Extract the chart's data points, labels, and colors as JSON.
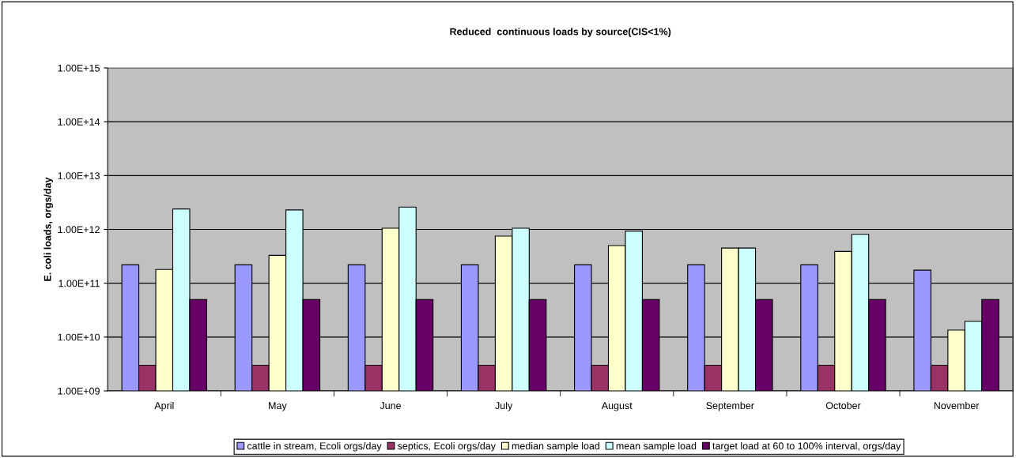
{
  "chart_data": {
    "type": "bar",
    "title": "Reduced  continuous loads by source(CIS<1%)",
    "ylabel": "E. coli loads, orgs/day",
    "categories": [
      "April",
      "May",
      "June",
      "July",
      "August",
      "September",
      "October",
      "November"
    ],
    "series": [
      {
        "name": "cattle in stream, Ecoli orgs/day",
        "color": "#9999ff",
        "values": [
          220000000000.0,
          220000000000.0,
          220000000000.0,
          220000000000.0,
          220000000000.0,
          220000000000.0,
          220000000000.0,
          175000000000.0
        ]
      },
      {
        "name": "septics, Ecoli orgs/day",
        "color": "#993366",
        "values": [
          3000000000.0,
          3000000000.0,
          3000000000.0,
          3000000000.0,
          3000000000.0,
          3000000000.0,
          3000000000.0,
          3000000000.0
        ]
      },
      {
        "name": "median sample load",
        "color": "#ffffcc",
        "values": [
          180000000000.0,
          330000000000.0,
          1050000000000.0,
          750000000000.0,
          500000000000.0,
          450000000000.0,
          390000000000.0,
          13500000000.0
        ]
      },
      {
        "name": "mean sample load",
        "color": "#ccffff",
        "values": [
          2400000000000.0,
          2300000000000.0,
          2600000000000.0,
          1050000000000.0,
          930000000000.0,
          450000000000.0,
          810000000000.0,
          19500000000.0
        ]
      },
      {
        "name": "target load at 60 to 100% interval, orgs/day",
        "color": "#660066",
        "values": [
          50000000000.0,
          50000000000.0,
          50000000000.0,
          50000000000.0,
          50000000000.0,
          50000000000.0,
          50000000000.0,
          50000000000.0
        ]
      }
    ],
    "log": true,
    "ylim": [
      1000000000.0,
      1000000000000000.0
    ],
    "yticks": [
      {
        "value": 1000000000.0,
        "label": "1.00E+09"
      },
      {
        "value": 10000000000.0,
        "label": "1.00E+10"
      },
      {
        "value": 100000000000.0,
        "label": "1.00E+11"
      },
      {
        "value": 1000000000000.0,
        "label": "1.00E+12"
      },
      {
        "value": 10000000000000.0,
        "label": "1.00E+13"
      },
      {
        "value": 100000000000000.0,
        "label": "1.00E+14"
      },
      {
        "value": 1000000000000000.0,
        "label": "1.00E+15"
      }
    ],
    "grid": "y",
    "legend": "bottom"
  }
}
